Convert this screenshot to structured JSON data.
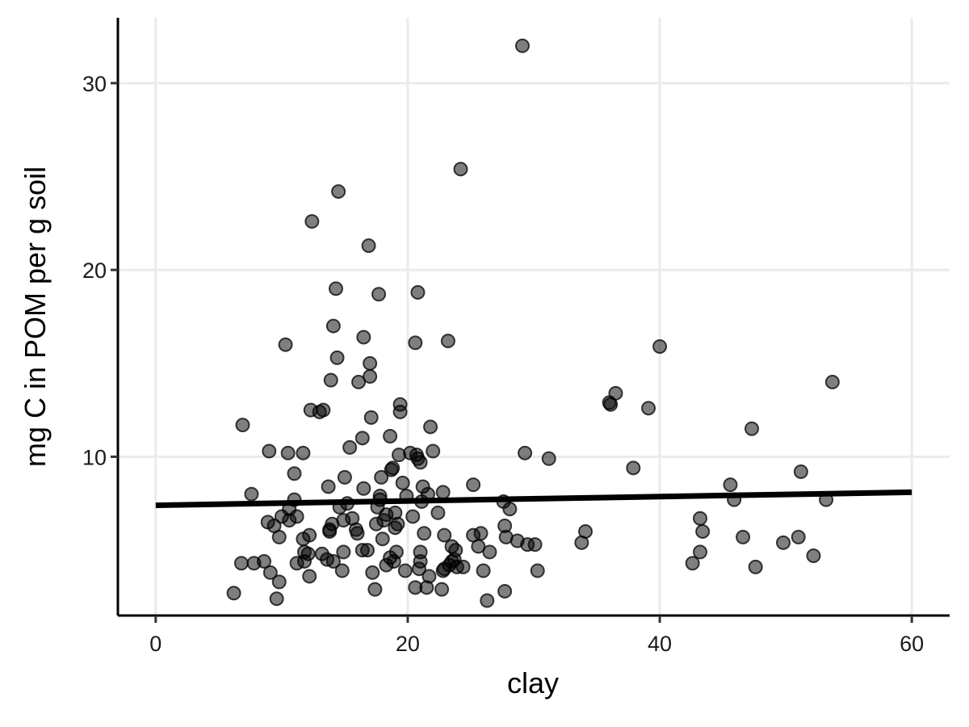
{
  "chart_data": {
    "type": "scatter",
    "xlabel": "clay",
    "ylabel": "mg C in POM per g soil",
    "xlim": [
      -3,
      63
    ],
    "ylim": [
      1.5,
      33.5
    ],
    "x_ticks": [
      0,
      20,
      40,
      60
    ],
    "y_ticks": [
      10,
      20,
      30
    ],
    "x_tick_labels": [
      "0",
      "20",
      "40",
      "60"
    ],
    "y_tick_labels": [
      "10",
      "20",
      "30"
    ],
    "grid": true,
    "point_color": "#000000",
    "point_opacity": 0.5,
    "trend_line": {
      "x": [
        0,
        60
      ],
      "y": [
        7.4,
        8.1
      ]
    },
    "points": [
      [
        6.2,
        2.7
      ],
      [
        6.8,
        4.3
      ],
      [
        6.9,
        11.7
      ],
      [
        7.6,
        8.0
      ],
      [
        7.8,
        4.3
      ],
      [
        8.6,
        4.4
      ],
      [
        8.9,
        6.5
      ],
      [
        9.0,
        10.3
      ],
      [
        9.1,
        3.8
      ],
      [
        9.4,
        6.3
      ],
      [
        9.6,
        2.4
      ],
      [
        9.8,
        3.3
      ],
      [
        9.8,
        5.7
      ],
      [
        10.0,
        6.8
      ],
      [
        10.3,
        16.0
      ],
      [
        10.5,
        10.2
      ],
      [
        10.6,
        6.6
      ],
      [
        10.6,
        7.2
      ],
      [
        11.0,
        9.1
      ],
      [
        11.0,
        7.7
      ],
      [
        11.2,
        4.3
      ],
      [
        11.2,
        6.8
      ],
      [
        11.7,
        10.2
      ],
      [
        11.7,
        5.6
      ],
      [
        11.8,
        4.9
      ],
      [
        11.8,
        4.4
      ],
      [
        12.1,
        4.8
      ],
      [
        12.2,
        3.6
      ],
      [
        12.3,
        12.5
      ],
      [
        12.4,
        22.6
      ],
      [
        12.2,
        5.8
      ],
      [
        13.0,
        12.4
      ],
      [
        13.2,
        4.8
      ],
      [
        13.3,
        12.5
      ],
      [
        13.6,
        4.5
      ],
      [
        13.7,
        8.4
      ],
      [
        13.8,
        6.1
      ],
      [
        13.8,
        6.0
      ],
      [
        13.9,
        14.1
      ],
      [
        14.0,
        6.4
      ],
      [
        14.1,
        17.0
      ],
      [
        14.1,
        4.4
      ],
      [
        14.3,
        19.0
      ],
      [
        14.4,
        15.3
      ],
      [
        14.5,
        24.2
      ],
      [
        14.6,
        7.3
      ],
      [
        14.8,
        3.9
      ],
      [
        14.9,
        4.9
      ],
      [
        14.9,
        6.6
      ],
      [
        15.0,
        8.9
      ],
      [
        15.2,
        7.5
      ],
      [
        15.4,
        10.5
      ],
      [
        15.6,
        6.7
      ],
      [
        15.9,
        6.1
      ],
      [
        16.0,
        5.9
      ],
      [
        16.1,
        14.0
      ],
      [
        16.4,
        11.0
      ],
      [
        16.4,
        5.0
      ],
      [
        16.5,
        8.3
      ],
      [
        16.5,
        16.4
      ],
      [
        16.8,
        5.0
      ],
      [
        16.9,
        21.3
      ],
      [
        17.0,
        14.3
      ],
      [
        17.0,
        15.0
      ],
      [
        17.1,
        12.1
      ],
      [
        17.2,
        3.8
      ],
      [
        17.4,
        2.9
      ],
      [
        17.5,
        6.4
      ],
      [
        17.6,
        7.3
      ],
      [
        17.7,
        18.7
      ],
      [
        17.8,
        7.9
      ],
      [
        17.8,
        7.7
      ],
      [
        17.9,
        8.9
      ],
      [
        18.0,
        5.6
      ],
      [
        18.1,
        6.6
      ],
      [
        18.3,
        4.2
      ],
      [
        18.3,
        6.9
      ],
      [
        18.6,
        4.6
      ],
      [
        18.6,
        11.1
      ],
      [
        18.7,
        9.3
      ],
      [
        18.8,
        9.4
      ],
      [
        18.9,
        4.4
      ],
      [
        19.0,
        7.0
      ],
      [
        19.0,
        6.2
      ],
      [
        19.1,
        4.9
      ],
      [
        19.2,
        6.4
      ],
      [
        19.3,
        10.1
      ],
      [
        19.4,
        12.8
      ],
      [
        19.4,
        12.4
      ],
      [
        19.6,
        8.6
      ],
      [
        19.8,
        3.9
      ],
      [
        19.9,
        7.9
      ],
      [
        20.2,
        10.2
      ],
      [
        20.4,
        6.8
      ],
      [
        20.6,
        3.0
      ],
      [
        20.6,
        16.1
      ],
      [
        20.7,
        10.1
      ],
      [
        20.8,
        18.8
      ],
      [
        20.8,
        9.9
      ],
      [
        20.9,
        4.0
      ],
      [
        21.0,
        4.4
      ],
      [
        21.0,
        4.9
      ],
      [
        21.0,
        9.7
      ],
      [
        21.1,
        7.6
      ],
      [
        21.2,
        8.4
      ],
      [
        21.3,
        5.9
      ],
      [
        21.5,
        3.0
      ],
      [
        21.6,
        8.0
      ],
      [
        21.7,
        3.6
      ],
      [
        21.8,
        11.6
      ],
      [
        22.0,
        10.3
      ],
      [
        22.4,
        7.0
      ],
      [
        22.7,
        2.9
      ],
      [
        22.8,
        3.9
      ],
      [
        22.8,
        8.1
      ],
      [
        22.9,
        5.8
      ],
      [
        22.9,
        4.0
      ],
      [
        23.2,
        16.2
      ],
      [
        23.3,
        4.2
      ],
      [
        23.5,
        4.4
      ],
      [
        23.5,
        5.2
      ],
      [
        23.7,
        4.5
      ],
      [
        23.8,
        5.0
      ],
      [
        23.9,
        4.1
      ],
      [
        24.2,
        25.4
      ],
      [
        24.4,
        4.1
      ],
      [
        25.2,
        8.5
      ],
      [
        25.2,
        5.8
      ],
      [
        25.6,
        5.2
      ],
      [
        25.8,
        5.9
      ],
      [
        26.0,
        3.9
      ],
      [
        26.3,
        2.3
      ],
      [
        26.5,
        4.9
      ],
      [
        27.6,
        7.6
      ],
      [
        27.7,
        2.8
      ],
      [
        27.7,
        6.3
      ],
      [
        27.8,
        5.7
      ],
      [
        28.1,
        7.2
      ],
      [
        28.7,
        5.5
      ],
      [
        29.1,
        32.0
      ],
      [
        29.3,
        10.2
      ],
      [
        29.5,
        5.3
      ],
      [
        30.1,
        5.3
      ],
      [
        30.3,
        3.9
      ],
      [
        31.2,
        9.9
      ],
      [
        33.8,
        5.4
      ],
      [
        34.1,
        6.0
      ],
      [
        36.0,
        12.9
      ],
      [
        36.1,
        12.8
      ],
      [
        36.5,
        13.4
      ],
      [
        37.9,
        9.4
      ],
      [
        39.1,
        12.6
      ],
      [
        40.0,
        15.9
      ],
      [
        42.6,
        4.3
      ],
      [
        43.2,
        4.9
      ],
      [
        43.2,
        6.7
      ],
      [
        43.4,
        6.0
      ],
      [
        45.6,
        8.5
      ],
      [
        45.9,
        7.7
      ],
      [
        46.6,
        5.7
      ],
      [
        47.3,
        11.5
      ],
      [
        47.6,
        4.1
      ],
      [
        49.8,
        5.4
      ],
      [
        51.0,
        5.7
      ],
      [
        51.2,
        9.2
      ],
      [
        52.2,
        4.7
      ],
      [
        53.2,
        7.7
      ],
      [
        53.7,
        14.0
      ]
    ]
  }
}
